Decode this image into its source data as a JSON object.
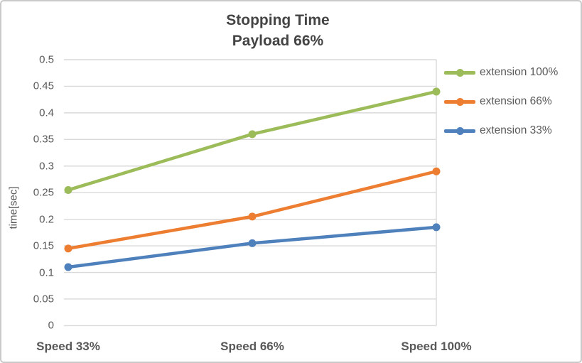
{
  "chart_data": {
    "type": "line",
    "title": "Stopping Time",
    "subtitle": "Payload 66%",
    "ylabel": "time[sec]",
    "xlabel": "",
    "categories": [
      "Speed 33%",
      "Speed 66%",
      "Speed 100%"
    ],
    "series": [
      {
        "name": "extension 100%",
        "color": "#9cbb59",
        "values": [
          0.255,
          0.36,
          0.44
        ]
      },
      {
        "name": "extension 66%",
        "color": "#ed7d31",
        "values": [
          0.145,
          0.205,
          0.29
        ]
      },
      {
        "name": "extension 33%",
        "color": "#4e80bc",
        "values": [
          0.11,
          0.155,
          0.185
        ]
      }
    ],
    "ylim": [
      0,
      0.5
    ],
    "yticks": [
      "0",
      "0.05",
      "0.1",
      "0.15",
      "0.2",
      "0.25",
      "0.3",
      "0.35",
      "0.4",
      "0.45",
      "0.5"
    ],
    "grid": true,
    "legend_position": "right"
  },
  "colors": {
    "gridline": "#d9d9d9",
    "axis_text": "#595959",
    "title_text": "#444444",
    "frame_border": "#c9c9c9",
    "background": "#ffffff"
  }
}
